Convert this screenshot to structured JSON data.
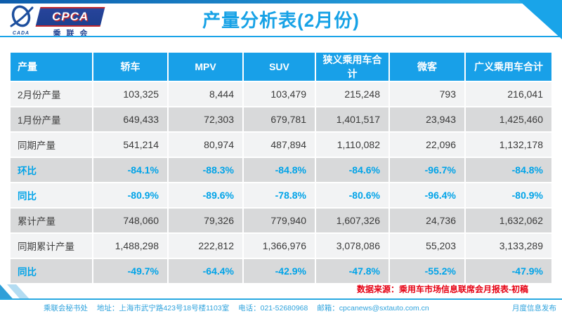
{
  "header": {
    "title": "产量分析表(2月份)",
    "logo": {
      "emblem_caption": "CADA",
      "banner_text": "CPCA",
      "banner_sub": "乘联会"
    }
  },
  "table": {
    "columns": [
      "产量",
      "轿车",
      "MPV",
      "SUV",
      "狭义乘用车合计",
      "微客",
      "广义乘用车合计"
    ],
    "rows": [
      {
        "label": "2月份产量",
        "type": "number",
        "values": [
          "103,325",
          "8,444",
          "103,479",
          "215,248",
          "793",
          "216,041"
        ]
      },
      {
        "label": "1月份产量",
        "type": "number",
        "values": [
          "649,433",
          "72,303",
          "679,781",
          "1,401,517",
          "23,943",
          "1,425,460"
        ]
      },
      {
        "label": "同期产量",
        "type": "number",
        "values": [
          "541,214",
          "80,974",
          "487,894",
          "1,110,082",
          "22,096",
          "1,132,178"
        ]
      },
      {
        "label": "环比",
        "type": "percent",
        "values": [
          "-84.1%",
          "-88.3%",
          "-84.8%",
          "-84.6%",
          "-96.7%",
          "-84.8%"
        ]
      },
      {
        "label": "同比",
        "type": "percent",
        "values": [
          "-80.9%",
          "-89.6%",
          "-78.8%",
          "-80.6%",
          "-96.4%",
          "-80.9%"
        ]
      },
      {
        "label": "累计产量",
        "type": "number",
        "values": [
          "748,060",
          "79,326",
          "779,940",
          "1,607,326",
          "24,736",
          "1,632,062"
        ]
      },
      {
        "label": "同期累计产量",
        "type": "number",
        "values": [
          "1,488,298",
          "222,812",
          "1,366,976",
          "3,078,086",
          "55,203",
          "3,133,289"
        ]
      },
      {
        "label": "同比",
        "type": "percent",
        "values": [
          "-49.7%",
          "-64.4%",
          "-42.9%",
          "-47.8%",
          "-55.2%",
          "-47.9%"
        ]
      }
    ]
  },
  "source_note": "数据来源：乘用车市场信息联席会月报表-初稿",
  "footer": {
    "org": "乘联会秘书处",
    "address": "地址：上海市武宁路423号18号楼1103室",
    "phone": "电话：021-52680968",
    "email": "邮箱：cpcanews@sxtauto.com.cn",
    "right": "月度信息发布"
  },
  "colors": {
    "accent_blue": "#18a0e8",
    "percent_blue": "#00a3e8",
    "source_red": "#e60012",
    "banner_navy": "#1e3f8f",
    "row_light": "#f2f3f4",
    "row_dark": "#d8d9da"
  }
}
